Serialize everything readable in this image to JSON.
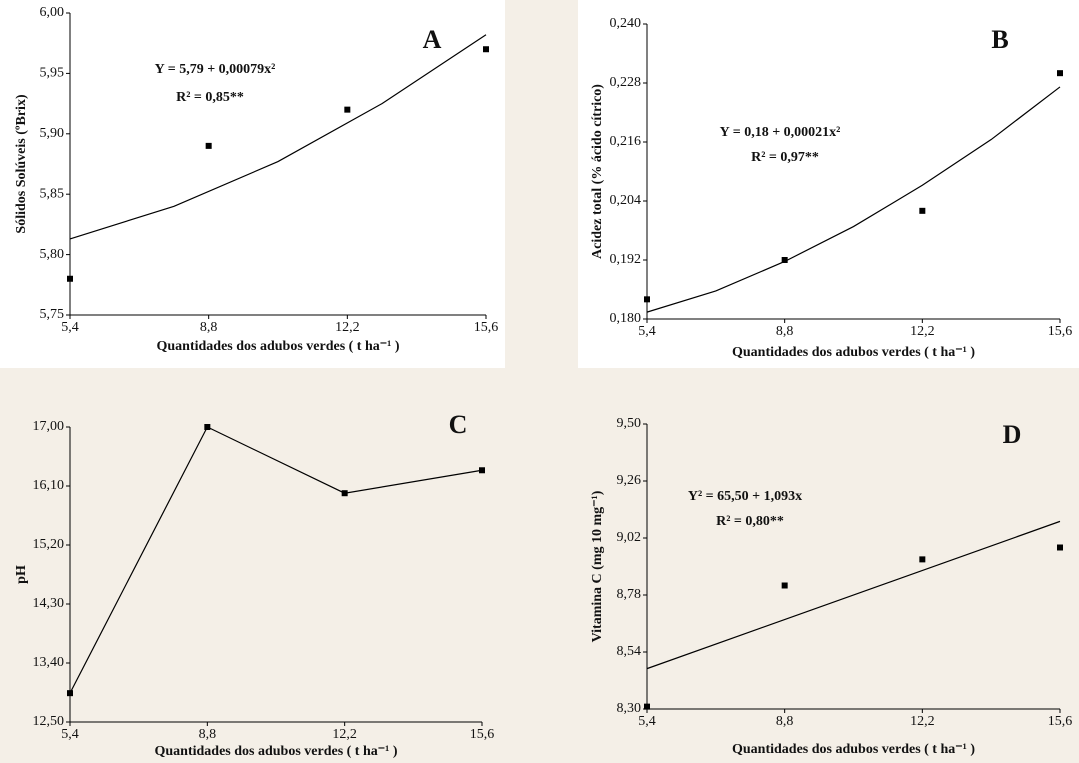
{
  "chart_data": [
    {
      "type": "scatter",
      "panel_label": "A",
      "ylabel": "Sólidos Solúveis (ºBrix)",
      "xlabel": "Quantidades dos adubos verdes ( t ha⁻¹ )",
      "annotations": [
        "Y = 5,79 + 0,00079x²",
        "R² = 0,85**"
      ],
      "x": [
        5.4,
        8.8,
        12.2,
        15.6
      ],
      "values": [
        5.78,
        5.89,
        5.92,
        5.97
      ],
      "fit": {
        "x": [
          5.4,
          7.95,
          10.5,
          13.05,
          15.6
        ],
        "values": [
          5.813,
          5.84,
          5.877,
          5.925,
          5.982
        ]
      },
      "xlim": [
        5.4,
        15.6
      ],
      "ylim": [
        5.75,
        6.0
      ],
      "xticks": [
        {
          "value": 5.4,
          "label": "5,4"
        },
        {
          "value": 8.8,
          "label": "8,8"
        },
        {
          "value": 12.2,
          "label": "12,2"
        },
        {
          "value": 15.6,
          "label": "15,6"
        }
      ],
      "yticks": [
        {
          "value": 5.75,
          "label": "5,75"
        },
        {
          "value": 5.8,
          "label": "5,80"
        },
        {
          "value": 5.85,
          "label": "5,85"
        },
        {
          "value": 5.9,
          "label": "5,90"
        },
        {
          "value": 5.95,
          "label": "5,95"
        },
        {
          "value": 6.0,
          "label": "6,00"
        }
      ],
      "color": "#000000"
    },
    {
      "type": "scatter",
      "panel_label": "B",
      "ylabel": "Acidez total (% ácido cítrico)",
      "xlabel": "Quantidades dos adubos verdes ( t ha⁻¹ )",
      "annotations": [
        "Y = 0,18 + 0,00021x²",
        "R² = 0,97**"
      ],
      "x": [
        5.4,
        8.8,
        12.2,
        15.6
      ],
      "values": [
        0.184,
        0.192,
        0.202,
        0.23
      ],
      "fit": {
        "x": [
          5.4,
          7.1,
          8.8,
          10.5,
          12.2,
          13.9,
          15.6
        ],
        "values": [
          0.1814,
          0.1857,
          0.1917,
          0.1988,
          0.2072,
          0.2165,
          0.2272
        ]
      },
      "xlim": [
        5.4,
        15.6
      ],
      "ylim": [
        0.18,
        0.24
      ],
      "xticks": [
        {
          "value": 5.4,
          "label": "5,4"
        },
        {
          "value": 8.8,
          "label": "8,8"
        },
        {
          "value": 12.2,
          "label": "12,2"
        },
        {
          "value": 15.6,
          "label": "15,6"
        }
      ],
      "yticks": [
        {
          "value": 0.18,
          "label": "0,180"
        },
        {
          "value": 0.192,
          "label": "0,192"
        },
        {
          "value": 0.204,
          "label": "0,204"
        },
        {
          "value": 0.216,
          "label": "0,216"
        },
        {
          "value": 0.228,
          "label": "0,228"
        },
        {
          "value": 0.24,
          "label": "0,240"
        }
      ],
      "color": "#000000"
    },
    {
      "type": "line",
      "panel_label": "C",
      "ylabel": "pH",
      "xlabel": "Quantidades dos adubos verdes ( t ha⁻¹ )",
      "annotations": [],
      "x": [
        5.4,
        8.8,
        12.2,
        15.6
      ],
      "values": [
        12.94,
        17.0,
        15.99,
        16.34
      ],
      "xlim": [
        5.4,
        15.6
      ],
      "ylim": [
        12.5,
        17.0
      ],
      "xticks": [
        {
          "value": 5.4,
          "label": "5,4"
        },
        {
          "value": 8.8,
          "label": "8,8"
        },
        {
          "value": 12.2,
          "label": "12,2"
        },
        {
          "value": 15.6,
          "label": "15,6"
        }
      ],
      "yticks": [
        {
          "value": 12.5,
          "label": "12,50"
        },
        {
          "value": 13.4,
          "label": "13,40"
        },
        {
          "value": 14.3,
          "label": "14,30"
        },
        {
          "value": 15.2,
          "label": "15,20"
        },
        {
          "value": 16.1,
          "label": "16,10"
        },
        {
          "value": 17.0,
          "label": "17,00"
        }
      ],
      "color": "#000000"
    },
    {
      "type": "scatter",
      "panel_label": "D",
      "ylabel": "Vitamina C (mg 10 mg⁻¹)",
      "xlabel": "Quantidades dos adubos verdes ( t ha⁻¹ )",
      "annotations": [
        "Y² = 65,50 + 1,093x",
        "R² = 0,80**"
      ],
      "x": [
        5.4,
        8.8,
        12.2,
        15.6
      ],
      "values": [
        8.31,
        8.82,
        8.93,
        8.98
      ],
      "fit": {
        "x": [
          5.4,
          15.6
        ],
        "values": [
          8.47,
          9.09
        ]
      },
      "xlim": [
        5.4,
        15.6
      ],
      "ylim": [
        8.3,
        9.5
      ],
      "xticks": [
        {
          "value": 5.4,
          "label": "5,4"
        },
        {
          "value": 8.8,
          "label": "8,8"
        },
        {
          "value": 12.2,
          "label": "12,2"
        },
        {
          "value": 15.6,
          "label": "15,6"
        }
      ],
      "yticks": [
        {
          "value": 8.3,
          "label": "8,30"
        },
        {
          "value": 8.54,
          "label": "8,54"
        },
        {
          "value": 8.78,
          "label": "8,78"
        },
        {
          "value": 9.02,
          "label": "9,02"
        },
        {
          "value": 9.26,
          "label": "9,26"
        },
        {
          "value": 9.5,
          "label": "9,50"
        }
      ],
      "color": "#000000"
    }
  ]
}
